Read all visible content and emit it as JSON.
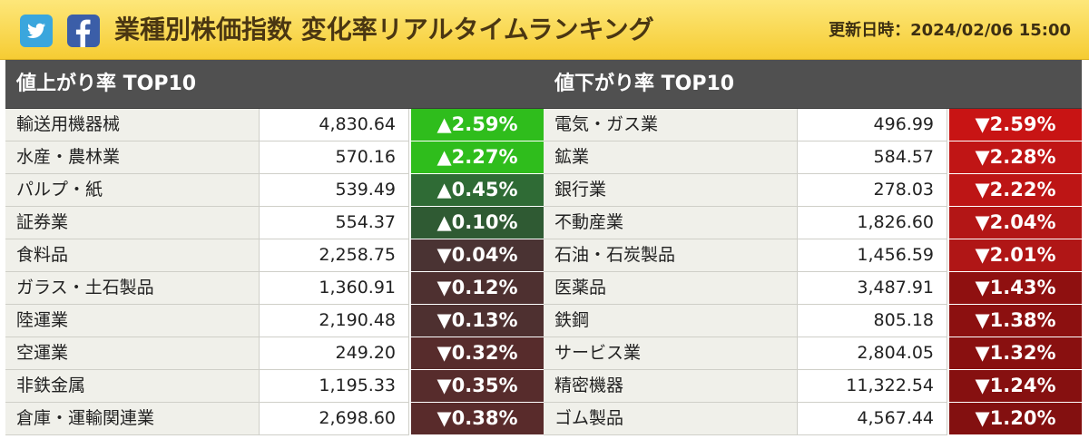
{
  "header": {
    "title": "業種別株価指数 変化率リアルタイムランキング",
    "updated": "更新日時：2024/02/06 15:00",
    "social": [
      {
        "name": "twitter",
        "icon": "twitter-bird-icon",
        "color": "#3aa6dd"
      },
      {
        "name": "facebook",
        "icon": "facebook-f-icon",
        "color": "#3b5ea8"
      }
    ]
  },
  "gainers": {
    "heading": "値上がり率 TOP10",
    "rows": [
      {
        "name": "輸送用機器械",
        "value": "4,830.64",
        "change": "▲2.59%",
        "color": "#2fbd1c"
      },
      {
        "name": "水産・農林業",
        "value": "570.16",
        "change": "▲2.27%",
        "color": "#2fbd1c"
      },
      {
        "name": "パルプ・紙",
        "value": "539.49",
        "change": "▲0.45%",
        "color": "#2f6b35"
      },
      {
        "name": "証券業",
        "value": "554.37",
        "change": "▲0.10%",
        "color": "#2f5a33"
      },
      {
        "name": "食料品",
        "value": "2,258.75",
        "change": "▼0.04%",
        "color": "#4a3333"
      },
      {
        "name": "ガラス・土石製品",
        "value": "1,360.91",
        "change": "▼0.12%",
        "color": "#4e3030"
      },
      {
        "name": "陸運業",
        "value": "2,190.48",
        "change": "▼0.13%",
        "color": "#4e3030"
      },
      {
        "name": "空運業",
        "value": "249.20",
        "change": "▼0.32%",
        "color": "#572c2c"
      },
      {
        "name": "非鉄金属",
        "value": "1,195.33",
        "change": "▼0.35%",
        "color": "#572c2c"
      },
      {
        "name": "倉庫・運輸関連業",
        "value": "2,698.60",
        "change": "▼0.38%",
        "color": "#592b2b"
      }
    ]
  },
  "losers": {
    "heading": "値下がり率 TOP10",
    "rows": [
      {
        "name": "電気・ガス業",
        "value": "496.99",
        "change": "▼2.59%",
        "color": "#c81414"
      },
      {
        "name": "鉱業",
        "value": "584.57",
        "change": "▼2.28%",
        "color": "#c01515"
      },
      {
        "name": "銀行業",
        "value": "278.03",
        "change": "▼2.22%",
        "color": "#bd1515"
      },
      {
        "name": "不動産業",
        "value": "1,826.60",
        "change": "▼2.04%",
        "color": "#b31616"
      },
      {
        "name": "石油・石炭製品",
        "value": "1,456.59",
        "change": "▼2.01%",
        "color": "#b01616"
      },
      {
        "name": "医薬品",
        "value": "3,487.91",
        "change": "▼1.43%",
        "color": "#8f1010"
      },
      {
        "name": "鉄鋼",
        "value": "805.18",
        "change": "▼1.38%",
        "color": "#8c1010"
      },
      {
        "name": "サービス業",
        "value": "2,804.05",
        "change": "▼1.32%",
        "color": "#891010"
      },
      {
        "name": "精密機器",
        "value": "11,322.54",
        "change": "▼1.24%",
        "color": "#861010"
      },
      {
        "name": "ゴム製品",
        "value": "4,567.44",
        "change": "▼1.20%",
        "color": "#831010"
      }
    ]
  }
}
